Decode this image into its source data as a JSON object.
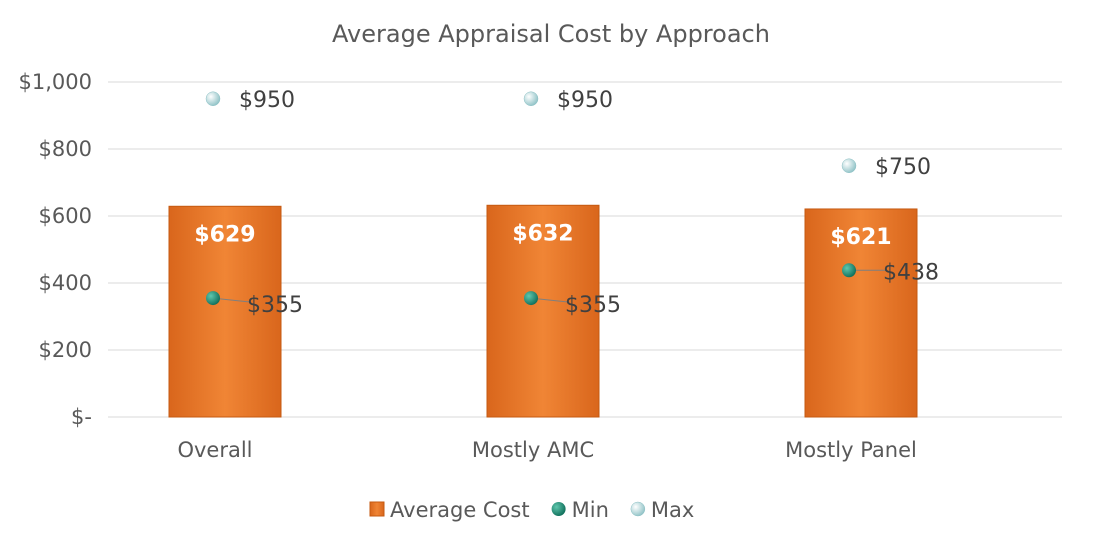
{
  "chart_data": {
    "type": "bar",
    "title": "Average Appraisal Cost by Approach",
    "categories": [
      "Overall",
      "Mostly AMC",
      "Mostly Panel"
    ],
    "series": [
      {
        "name": "Average Cost",
        "kind": "bar",
        "values": [
          629,
          632,
          621
        ],
        "labels": [
          "$629",
          "$632",
          "$621"
        ],
        "color": "#ED7D31"
      },
      {
        "name": "Min",
        "kind": "marker",
        "values": [
          355,
          355,
          438
        ],
        "labels": [
          "$355",
          "$355",
          "$438"
        ],
        "color": "#1E8C74"
      },
      {
        "name": "Max",
        "kind": "marker",
        "values": [
          950,
          950,
          750
        ],
        "labels": [
          "$950",
          "$950",
          "$750"
        ],
        "color": "#A9D4D6"
      }
    ],
    "ylim": [
      0,
      1000
    ],
    "yticks": [
      0,
      200,
      400,
      600,
      800,
      1000
    ],
    "ytick_labels": [
      "$-",
      "$200",
      "$400",
      "$600",
      "$800",
      "$1,000"
    ],
    "grid": true,
    "legend_position": "bottom"
  }
}
